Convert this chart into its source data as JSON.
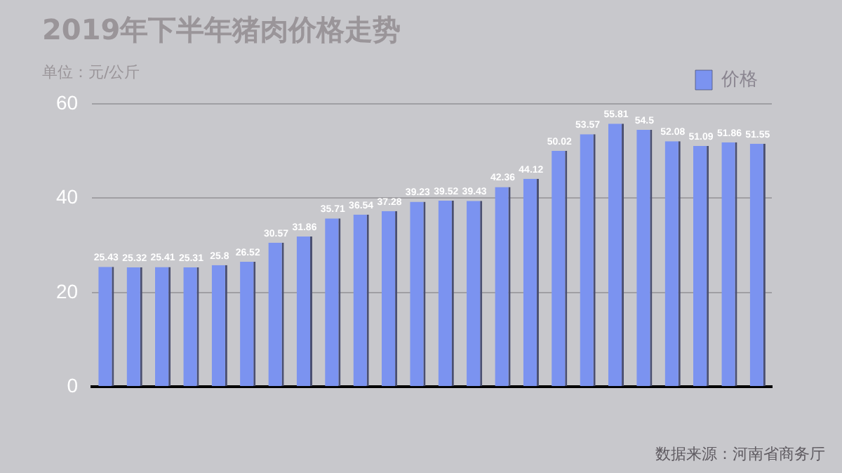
{
  "chart_data": {
    "type": "bar",
    "title": "2019年下半年猪肉价格走势",
    "subtitle": "单位：元/公斤",
    "annotations": [
      "数据来源：河南省商务厅"
    ],
    "categories": [
      null,
      null,
      null,
      null,
      null,
      null,
      null,
      null,
      null,
      null,
      null,
      null,
      null,
      null,
      null,
      null,
      null,
      null,
      null,
      null,
      null,
      null,
      null,
      null
    ],
    "series": [
      {
        "name": "价格",
        "color": "#7b93f0",
        "values": [
          25.43,
          25.32,
          25.41,
          25.31,
          25.8,
          26.52,
          30.57,
          31.86,
          35.71,
          36.54,
          37.28,
          39.23,
          39.52,
          39.43,
          42.36,
          44.12,
          50.02,
          53.57,
          55.81,
          54.5,
          52.08,
          51.09,
          51.86,
          51.55
        ]
      }
    ],
    "ylim": [
      0,
      60
    ],
    "yticks": [
      0,
      20,
      40,
      60
    ],
    "grid": "y",
    "legend": "top right",
    "data_labels": true
  }
}
